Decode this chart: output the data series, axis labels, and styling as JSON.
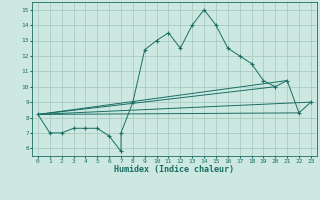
{
  "title": "",
  "xlabel": "Humidex (Indice chaleur)",
  "bg_color": "#cce8e0",
  "grid_color": "#aaccc4",
  "line_color": "#1a6e64",
  "xlim": [
    -0.5,
    23.5
  ],
  "ylim": [
    5.5,
    15.5
  ],
  "xticks": [
    0,
    1,
    2,
    3,
    4,
    5,
    6,
    7,
    8,
    9,
    10,
    11,
    12,
    13,
    14,
    15,
    16,
    17,
    18,
    19,
    20,
    21,
    22,
    23
  ],
  "yticks": [
    6,
    7,
    8,
    9,
    10,
    11,
    12,
    13,
    14,
    15
  ],
  "series": [
    [
      0,
      8.2
    ],
    [
      1,
      7.0
    ],
    [
      2,
      7.0
    ],
    [
      3,
      7.3
    ],
    [
      4,
      7.3
    ],
    [
      5,
      7.3
    ],
    [
      6,
      6.8
    ],
    [
      7,
      5.8
    ],
    [
      7,
      7.0
    ],
    [
      8,
      9.0
    ],
    [
      9,
      12.4
    ],
    [
      10,
      13.0
    ],
    [
      11,
      13.5
    ],
    [
      12,
      12.5
    ],
    [
      13,
      14.0
    ],
    [
      14,
      15.0
    ],
    [
      15,
      14.0
    ],
    [
      16,
      12.5
    ],
    [
      17,
      12.0
    ],
    [
      18,
      11.5
    ],
    [
      19,
      10.4
    ],
    [
      20,
      10.0
    ],
    [
      21,
      10.4
    ],
    [
      22,
      8.3
    ],
    [
      23,
      9.0
    ]
  ],
  "line1": [
    [
      0,
      8.2
    ],
    [
      23,
      9.0
    ]
  ],
  "line2": [
    [
      0,
      8.2
    ],
    [
      22,
      8.3
    ]
  ],
  "line3": [
    [
      0,
      8.2
    ],
    [
      21,
      10.4
    ]
  ],
  "line4": [
    [
      0,
      8.2
    ],
    [
      20,
      10.0
    ]
  ]
}
